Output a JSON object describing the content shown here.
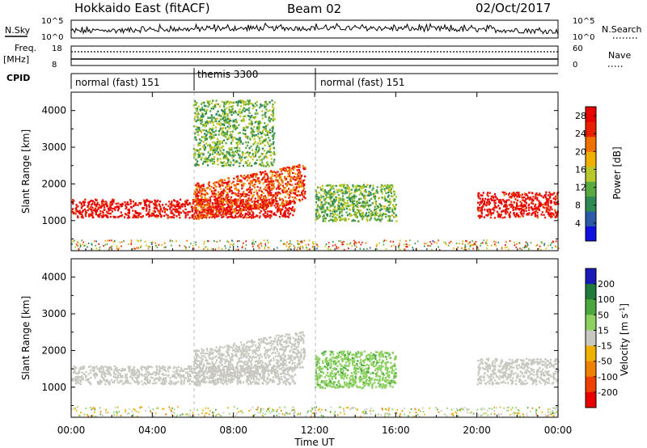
{
  "header": {
    "title": "Hokkaido East (fitACF)",
    "beam": "Beam 02",
    "date": "02/Oct/2017"
  },
  "top_panel": {
    "nsky_label": "N.Sky",
    "nsky_top": "10^5",
    "nsky_bottom": "10^0",
    "nsearch_label": "N.Search",
    "freq_label": "Freq.",
    "freq_unit": "[MHz]",
    "freq_top": "18",
    "freq_bottom": "8",
    "nave_top": "60",
    "nave_bottom": "0",
    "nave_label": "Nave",
    "cpid_label": "CPID"
  },
  "cpid_segments": [
    {
      "label": "normal (fast) 151",
      "start": "00:00",
      "end": "06:00"
    },
    {
      "label": "themis 3300",
      "start": "06:00",
      "end": "12:00"
    },
    {
      "label": "normal (fast) 151",
      "start": "12:00",
      "end": "24:00"
    }
  ],
  "chart_data": [
    {
      "type": "heatmap",
      "name": "power",
      "xlabel": "Time UT",
      "ylabel": "Slant Range [km]",
      "x_ticks": [
        "00:00",
        "04:00",
        "08:00",
        "12:00",
        "16:00",
        "20:00",
        "00:00"
      ],
      "x_range_hours": [
        0,
        24
      ],
      "y_ticks": [
        1000,
        2000,
        3000,
        4000
      ],
      "ylim": [
        180,
        4500
      ],
      "colorbar": {
        "label": "Power [dB]",
        "ticks": [
          4,
          8,
          12,
          16,
          20,
          24,
          28
        ],
        "range": [
          0,
          30
        ],
        "colors": [
          "#1010e0",
          "#2a5aa8",
          "#2e8a55",
          "#5aa840",
          "#b8c828",
          "#f0b000",
          "#f07000",
          "#e82000",
          "#e80000"
        ]
      },
      "regions": [
        {
          "feature": "main band",
          "t_start": 0,
          "t_end": 11,
          "r_start": 1100,
          "r_end": 1600,
          "value": 28
        },
        {
          "feature": "rising band",
          "t_start": 6,
          "t_end": 11.5,
          "r_start": 1300,
          "r_end": 2300,
          "value": 24
        },
        {
          "feature": "upper scatter",
          "t_start": 6,
          "t_end": 10,
          "r_start": 2500,
          "r_end": 4300,
          "value": 12
        },
        {
          "feature": "post-midday patches",
          "t_start": 12,
          "t_end": 16,
          "r_start": 1000,
          "r_end": 2000,
          "value": 12
        },
        {
          "feature": "evening band",
          "t_start": 20,
          "t_end": 24,
          "r_start": 1100,
          "r_end": 1800,
          "value": 28
        }
      ]
    },
    {
      "type": "heatmap",
      "name": "velocity",
      "xlabel": "Time UT",
      "ylabel": "Slant Range [km]",
      "x_ticks": [
        "00:00",
        "04:00",
        "08:00",
        "12:00",
        "16:00",
        "20:00",
        "00:00"
      ],
      "x_range_hours": [
        0,
        24
      ],
      "y_ticks": [
        1000,
        2000,
        3000,
        4000
      ],
      "ylim": [
        180,
        4500
      ],
      "colorbar": {
        "label": "Velocity [m s^-1]",
        "ticks": [
          200,
          100,
          50,
          15,
          -15,
          -50,
          -100,
          -200
        ],
        "colors": [
          "#1a1ab8",
          "#1f7a3c",
          "#4aa83c",
          "#8cd060",
          "#c8c8c0",
          "#f0b000",
          "#f08000",
          "#f04000",
          "#e80000"
        ]
      },
      "regions": [
        {
          "feature": "main band",
          "t_start": 0,
          "t_end": 11,
          "r_start": 1100,
          "r_end": 1600,
          "value": 0
        },
        {
          "feature": "rising band",
          "t_start": 6,
          "t_end": 11.5,
          "r_start": 1300,
          "r_end": 2300,
          "value": 0
        },
        {
          "feature": "post-midday patches",
          "t_start": 12,
          "t_end": 16,
          "r_start": 1000,
          "r_end": 2000,
          "value": 40
        },
        {
          "feature": "evening band",
          "t_start": 20,
          "t_end": 24,
          "r_start": 1100,
          "r_end": 1800,
          "value": 0
        }
      ]
    }
  ]
}
